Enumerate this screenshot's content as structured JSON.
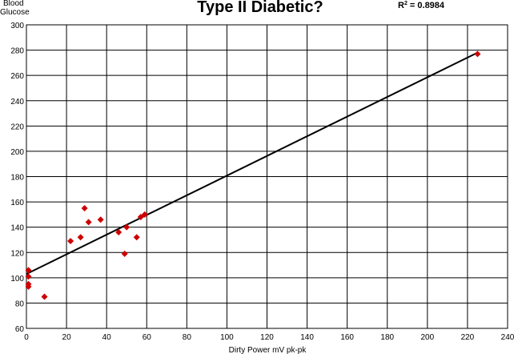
{
  "chart_data": {
    "type": "scatter",
    "title": "Type II Diabetic?",
    "r_squared_prefix": "R",
    "r_squared_exp": "2",
    "r_squared_value": " = 0.8984",
    "ylabel_line1": "Blood",
    "ylabel_line2": "Glucose",
    "xlabel": "Dirty Power mV pk-pk",
    "xlim": [
      0,
      240
    ],
    "ylim": [
      60,
      300
    ],
    "x_ticks": [
      "0",
      "20",
      "40",
      "60",
      "80",
      "100",
      "120",
      "140",
      "160",
      "180",
      "200",
      "220",
      "240"
    ],
    "y_ticks": [
      "60",
      "80",
      "100",
      "120",
      "140",
      "160",
      "180",
      "200",
      "220",
      "240",
      "260",
      "280",
      "300"
    ],
    "grid": true,
    "marker_color": "#cc0000",
    "trendline_color": "#000000",
    "series": [
      {
        "points": [
          {
            "x": 1,
            "y": 106
          },
          {
            "x": 1,
            "y": 101
          },
          {
            "x": 1,
            "y": 95
          },
          {
            "x": 1,
            "y": 93
          },
          {
            "x": 9,
            "y": 85
          },
          {
            "x": 22,
            "y": 129
          },
          {
            "x": 27,
            "y": 132
          },
          {
            "x": 29,
            "y": 155
          },
          {
            "x": 31,
            "y": 144
          },
          {
            "x": 37,
            "y": 146
          },
          {
            "x": 46,
            "y": 136
          },
          {
            "x": 49,
            "y": 119
          },
          {
            "x": 50,
            "y": 140
          },
          {
            "x": 55,
            "y": 132
          },
          {
            "x": 57,
            "y": 148
          },
          {
            "x": 59,
            "y": 150
          },
          {
            "x": 225,
            "y": 277
          }
        ]
      }
    ],
    "trendline": {
      "x": [
        0,
        225
      ],
      "y": [
        103,
        278
      ]
    }
  }
}
